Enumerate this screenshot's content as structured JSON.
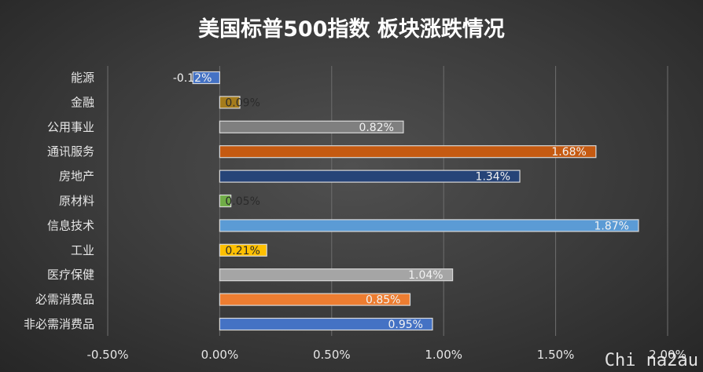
{
  "watermark": "Chi na2au",
  "chart_data": {
    "type": "bar",
    "orientation": "horizontal",
    "title": "美国标普500指数 板块涨跌情况",
    "categories": [
      "能源",
      "金融",
      "公用事业",
      "通讯服务",
      "房地产",
      "原材料",
      "信息技术",
      "工业",
      "医疗保健",
      "必需消费品",
      "非必需消费品"
    ],
    "values": [
      -0.12,
      0.09,
      0.82,
      1.68,
      1.34,
      0.05,
      1.87,
      0.21,
      1.04,
      0.85,
      0.95
    ],
    "data_labels": [
      "-0.12%",
      "0.09%",
      "0.82%",
      "1.68%",
      "1.34%",
      "0.05%",
      "1.87%",
      "0.21%",
      "1.04%",
      "0.85%",
      "0.95%"
    ],
    "colors": [
      "#4472c4",
      "#a57c1b",
      "#7f7f7f",
      "#c55a11",
      "#264478",
      "#70ad47",
      "#5b9bd5",
      "#ffc000",
      "#a5a5a5",
      "#ed7d31",
      "#4472c4"
    ],
    "xlim": [
      -0.5,
      2.0
    ],
    "xticks": [
      -0.5,
      0.0,
      0.5,
      1.0,
      1.5,
      2.0
    ],
    "xtick_labels": [
      "-0.50%",
      "0.00%",
      "0.50%",
      "1.00%",
      "1.50%",
      "2.00%"
    ],
    "grid": true,
    "legend": "none"
  }
}
